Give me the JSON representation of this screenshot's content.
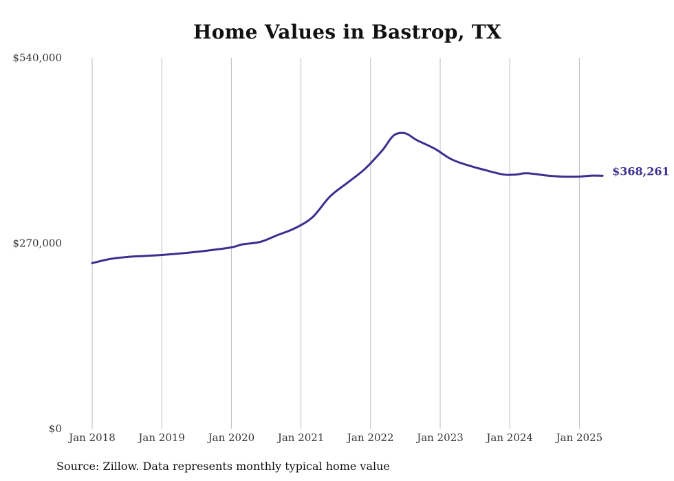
{
  "chart_data": {
    "type": "line",
    "title": "Home Values in Bastrop, TX",
    "source": "Source: Zillow. Data represents monthly typical home value",
    "xlabel": "",
    "ylabel": "",
    "ylim": [
      0,
      540000
    ],
    "y_ticks": [
      0,
      270000,
      540000
    ],
    "y_tick_labels": [
      "$0",
      "$270,000",
      "$540,000"
    ],
    "x_range": [
      "2018-01",
      "2025-05"
    ],
    "x_ticks": [
      "2018-01",
      "2019-01",
      "2020-01",
      "2021-01",
      "2022-01",
      "2023-01",
      "2024-01",
      "2025-01"
    ],
    "x_tick_labels": [
      "Jan 2018",
      "Jan 2019",
      "Jan 2020",
      "Jan 2021",
      "Jan 2022",
      "Jan 2023",
      "Jan 2024",
      "Jan 2025"
    ],
    "grid": {
      "vertical": true,
      "horizontal": false
    },
    "end_label": "$368,261",
    "colors": {
      "line": "#3b2f8f",
      "grid": "#bbbbbb",
      "end_label": "#3b2f8f"
    },
    "series": [
      {
        "x": [
          "2018-01",
          "2018-04",
          "2018-07",
          "2018-10",
          "2019-01",
          "2019-04",
          "2019-07",
          "2019-10",
          "2020-01",
          "2020-03",
          "2020-06",
          "2020-09",
          "2020-12",
          "2021-03",
          "2021-06",
          "2021-09",
          "2021-12",
          "2022-03",
          "2022-05",
          "2022-07",
          "2022-09",
          "2022-12",
          "2023-03",
          "2023-06",
          "2023-09",
          "2023-12",
          "2024-02",
          "2024-04",
          "2024-07",
          "2024-10",
          "2025-01",
          "2025-03",
          "2025-05"
        ],
        "values": [
          241000,
          247000,
          250000,
          251500,
          253000,
          255000,
          257500,
          260500,
          264000,
          268500,
          272000,
          282000,
          292000,
          308000,
          338000,
          358000,
          378000,
          405000,
          427000,
          430000,
          420000,
          408000,
          392000,
          383000,
          376000,
          370000,
          370000,
          372000,
          369000,
          367000,
          367000,
          368500,
          368261
        ]
      }
    ]
  }
}
